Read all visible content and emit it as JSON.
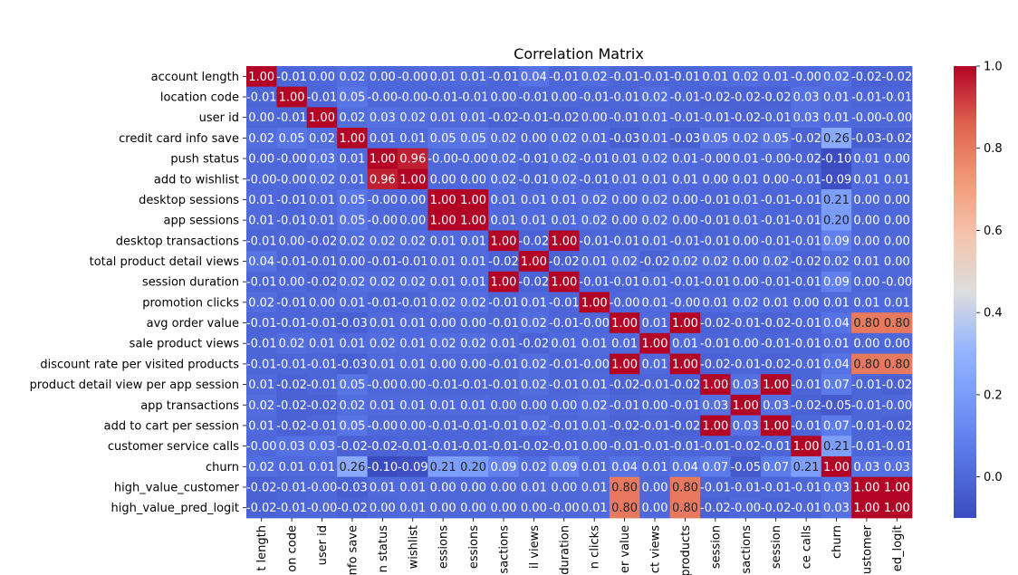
{
  "chart_data": {
    "type": "heatmap",
    "title": "Correlation Matrix",
    "row_labels": [
      "account length",
      "location code",
      "user id",
      "credit card info save",
      "push status",
      "add to wishlist",
      "desktop sessions",
      "app sessions",
      "desktop transactions",
      "total product detail views",
      "session duration",
      "promotion clicks",
      "avg order value",
      "sale product views",
      "discount rate per visited products",
      "product detail view per app session",
      "app transactions",
      "add to cart per session",
      "customer service calls",
      "churn",
      "high_value_customer",
      "high_value_pred_logit"
    ],
    "column_labels": [
      "t length",
      "on code",
      "user id",
      "nfo save",
      "n status",
      "wishlist",
      "essions",
      "essions",
      "sactions",
      "il views",
      "duration",
      "n clicks",
      "er value",
      "ct views",
      "products",
      "session",
      "sactions",
      "session",
      "ce calls",
      "churn",
      "ustomer",
      "ed_logit"
    ],
    "value_labels": [
      [
        "1.00",
        "-0.01",
        "0.00",
        "0.02",
        "0.00",
        "-0.00",
        "0.01",
        "0.01",
        "-0.01",
        "0.04",
        "-0.01",
        "0.02",
        "-0.01",
        "-0.01",
        "-0.01",
        "0.01",
        "0.02",
        "0.01",
        "-0.00",
        "0.02",
        "-0.02",
        "-0.02"
      ],
      [
        "-0.01",
        "1.00",
        "-0.01",
        "0.05",
        "-0.00",
        "-0.00",
        "-0.01",
        "-0.01",
        "0.00",
        "-0.01",
        "0.00",
        "-0.01",
        "-0.01",
        "0.02",
        "-0.01",
        "-0.02",
        "-0.02",
        "-0.02",
        "0.03",
        "0.01",
        "-0.01",
        "-0.01"
      ],
      [
        "0.00",
        "-0.01",
        "1.00",
        "0.02",
        "0.03",
        "0.02",
        "0.01",
        "0.01",
        "-0.02",
        "-0.01",
        "-0.02",
        "0.00",
        "-0.01",
        "0.01",
        "-0.01",
        "-0.01",
        "-0.02",
        "-0.01",
        "0.03",
        "0.01",
        "-0.00",
        "-0.00"
      ],
      [
        "0.02",
        "0.05",
        "0.02",
        "1.00",
        "0.01",
        "0.01",
        "0.05",
        "0.05",
        "0.02",
        "0.00",
        "0.02",
        "0.01",
        "-0.03",
        "0.01",
        "-0.03",
        "0.05",
        "0.02",
        "0.05",
        "-0.02",
        "0.26",
        "-0.03",
        "-0.02"
      ],
      [
        "0.00",
        "-0.00",
        "0.03",
        "0.01",
        "1.00",
        "0.96",
        "-0.00",
        "-0.00",
        "0.02",
        "-0.01",
        "0.02",
        "-0.01",
        "0.01",
        "0.02",
        "0.01",
        "-0.00",
        "0.01",
        "-0.00",
        "-0.02",
        "-0.10",
        "0.01",
        "0.00"
      ],
      [
        "-0.00",
        "-0.00",
        "0.02",
        "0.01",
        "0.96",
        "1.00",
        "0.00",
        "0.00",
        "0.02",
        "-0.01",
        "0.02",
        "-0.01",
        "0.01",
        "0.01",
        "0.01",
        "0.00",
        "0.01",
        "0.00",
        "-0.01",
        "-0.09",
        "0.01",
        "0.01"
      ],
      [
        "0.01",
        "-0.01",
        "0.01",
        "0.05",
        "-0.00",
        "0.00",
        "1.00",
        "1.00",
        "0.01",
        "0.01",
        "0.01",
        "0.02",
        "0.00",
        "0.02",
        "0.00",
        "-0.01",
        "0.01",
        "-0.01",
        "-0.01",
        "0.21",
        "0.00",
        "0.00"
      ],
      [
        "0.01",
        "-0.01",
        "0.01",
        "0.05",
        "-0.00",
        "0.00",
        "1.00",
        "1.00",
        "0.01",
        "0.01",
        "0.01",
        "0.02",
        "0.00",
        "0.02",
        "0.00",
        "-0.01",
        "0.01",
        "-0.01",
        "-0.01",
        "0.20",
        "0.00",
        "0.00"
      ],
      [
        "-0.01",
        "0.00",
        "-0.02",
        "0.02",
        "0.02",
        "0.02",
        "0.01",
        "0.01",
        "1.00",
        "-0.02",
        "1.00",
        "-0.01",
        "-0.01",
        "0.01",
        "-0.01",
        "-0.01",
        "0.00",
        "-0.01",
        "-0.01",
        "0.09",
        "0.00",
        "0.00"
      ],
      [
        "0.04",
        "-0.01",
        "-0.01",
        "0.00",
        "-0.01",
        "-0.01",
        "0.01",
        "0.01",
        "-0.02",
        "1.00",
        "-0.02",
        "0.01",
        "0.02",
        "-0.02",
        "0.02",
        "0.02",
        "0.00",
        "0.02",
        "-0.02",
        "0.02",
        "0.01",
        "0.00"
      ],
      [
        "-0.01",
        "0.00",
        "-0.02",
        "0.02",
        "0.02",
        "0.02",
        "0.01",
        "0.01",
        "1.00",
        "-0.02",
        "1.00",
        "-0.01",
        "-0.01",
        "0.01",
        "-0.01",
        "-0.01",
        "0.00",
        "-0.01",
        "-0.01",
        "0.09",
        "0.00",
        "-0.00"
      ],
      [
        "0.02",
        "-0.01",
        "0.00",
        "0.01",
        "-0.01",
        "-0.01",
        "0.02",
        "0.02",
        "-0.01",
        "0.01",
        "-0.01",
        "1.00",
        "-0.00",
        "0.01",
        "-0.00",
        "0.01",
        "0.02",
        "0.01",
        "0.00",
        "0.01",
        "0.01",
        "0.01"
      ],
      [
        "-0.01",
        "-0.01",
        "-0.01",
        "-0.03",
        "0.01",
        "0.01",
        "0.00",
        "0.00",
        "-0.01",
        "0.02",
        "-0.01",
        "-0.00",
        "1.00",
        "0.01",
        "1.00",
        "-0.02",
        "-0.01",
        "-0.02",
        "-0.01",
        "0.04",
        "0.80",
        "0.80"
      ],
      [
        "-0.01",
        "0.02",
        "0.01",
        "0.01",
        "0.02",
        "0.01",
        "0.02",
        "0.02",
        "0.01",
        "-0.02",
        "0.01",
        "0.01",
        "0.01",
        "1.00",
        "0.01",
        "-0.01",
        "0.00",
        "-0.01",
        "-0.01",
        "0.01",
        "0.00",
        "0.00"
      ],
      [
        "-0.01",
        "-0.01",
        "-0.01",
        "-0.03",
        "0.01",
        "0.01",
        "0.00",
        "0.00",
        "-0.01",
        "0.02",
        "-0.01",
        "-0.00",
        "1.00",
        "0.01",
        "1.00",
        "-0.02",
        "-0.01",
        "-0.02",
        "-0.01",
        "0.04",
        "0.80",
        "0.80"
      ],
      [
        "0.01",
        "-0.02",
        "-0.01",
        "0.05",
        "-0.00",
        "0.00",
        "-0.01",
        "-0.01",
        "-0.01",
        "0.02",
        "-0.01",
        "0.01",
        "-0.02",
        "-0.01",
        "-0.02",
        "1.00",
        "0.03",
        "1.00",
        "-0.01",
        "0.07",
        "-0.01",
        "-0.02"
      ],
      [
        "0.02",
        "-0.02",
        "-0.02",
        "0.02",
        "0.01",
        "0.01",
        "0.01",
        "0.01",
        "0.00",
        "0.00",
        "0.00",
        "0.02",
        "-0.01",
        "0.00",
        "-0.01",
        "0.03",
        "1.00",
        "0.03",
        "-0.02",
        "-0.05",
        "-0.01",
        "-0.00"
      ],
      [
        "0.01",
        "-0.02",
        "-0.01",
        "0.05",
        "-0.00",
        "0.00",
        "-0.01",
        "-0.01",
        "-0.01",
        "0.02",
        "-0.01",
        "0.01",
        "-0.02",
        "-0.01",
        "-0.02",
        "1.00",
        "0.03",
        "1.00",
        "-0.01",
        "0.07",
        "-0.01",
        "-0.02"
      ],
      [
        "-0.00",
        "0.03",
        "0.03",
        "-0.02",
        "-0.02",
        "-0.01",
        "-0.01",
        "-0.01",
        "-0.01",
        "-0.02",
        "-0.01",
        "0.00",
        "-0.01",
        "-0.01",
        "-0.01",
        "-0.01",
        "-0.02",
        "-0.01",
        "1.00",
        "0.21",
        "-0.01",
        "-0.01"
      ],
      [
        "0.02",
        "0.01",
        "0.01",
        "0.26",
        "-0.10",
        "-0.09",
        "0.21",
        "0.20",
        "0.09",
        "0.02",
        "0.09",
        "0.01",
        "0.04",
        "0.01",
        "0.04",
        "0.07",
        "-0.05",
        "0.07",
        "0.21",
        "1.00",
        "0.03",
        "0.03"
      ],
      [
        "-0.02",
        "-0.01",
        "-0.00",
        "-0.03",
        "0.01",
        "0.01",
        "0.00",
        "0.00",
        "0.00",
        "0.01",
        "0.00",
        "0.01",
        "0.80",
        "0.00",
        "0.80",
        "-0.01",
        "-0.01",
        "-0.01",
        "-0.01",
        "0.03",
        "1.00",
        "1.00"
      ],
      [
        "-0.02",
        "-0.01",
        "-0.00",
        "-0.02",
        "0.00",
        "0.01",
        "0.00",
        "0.00",
        "0.00",
        "0.00",
        "-0.00",
        "0.01",
        "0.80",
        "0.00",
        "0.80",
        "-0.02",
        "-0.00",
        "-0.02",
        "-0.01",
        "0.03",
        "1.00",
        "1.00"
      ]
    ],
    "colorscale": "coolwarm",
    "vmin": -0.1,
    "vmax": 1.0,
    "colorbar_ticks": [
      "0.0",
      "0.2",
      "0.4",
      "0.6",
      "0.8",
      "1.0"
    ]
  }
}
